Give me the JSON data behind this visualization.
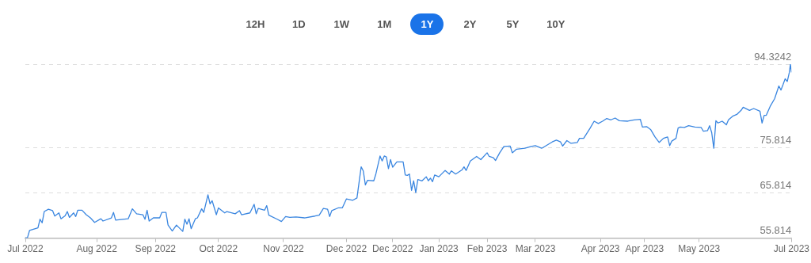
{
  "chart_data": {
    "type": "line",
    "annotations": [
      "12H",
      "1D",
      "1W",
      "1M",
      "1Y",
      "2Y",
      "5Y",
      "10Y"
    ],
    "x": [
      "2022-07-01",
      "2022-07-02",
      "2022-07-03",
      "2022-07-07",
      "2022-07-08",
      "2022-07-09",
      "2022-07-10",
      "2022-07-12",
      "2022-07-14",
      "2022-07-15",
      "2022-07-17",
      "2022-07-18",
      "2022-07-20",
      "2022-07-21",
      "2022-07-22",
      "2022-07-24",
      "2022-07-25",
      "2022-07-26",
      "2022-07-28",
      "2022-07-30",
      "2022-08-01",
      "2022-08-03",
      "2022-08-06",
      "2022-08-07",
      "2022-08-11",
      "2022-08-12",
      "2022-08-13",
      "2022-08-19",
      "2022-08-21",
      "2022-08-23",
      "2022-08-26",
      "2022-08-27",
      "2022-08-28",
      "2022-08-29",
      "2022-08-31",
      "2022-09-03",
      "2022-09-04",
      "2022-09-06",
      "2022-09-07",
      "2022-09-09",
      "2022-09-11",
      "2022-09-14",
      "2022-09-15",
      "2022-09-16",
      "2022-09-17",
      "2022-09-18",
      "2022-09-20",
      "2022-09-21",
      "2022-09-23",
      "2022-09-24",
      "2022-09-26",
      "2022-09-27",
      "2022-09-28",
      "2022-09-30",
      "2022-10-01",
      "2022-10-04",
      "2022-10-05",
      "2022-10-09",
      "2022-10-11",
      "2022-10-12",
      "2022-10-16",
      "2022-10-18",
      "2022-10-19",
      "2022-10-20",
      "2022-10-23",
      "2022-10-24",
      "2022-10-25",
      "2022-10-29",
      "2022-10-31",
      "2022-11-02",
      "2022-11-04",
      "2022-11-07",
      "2022-11-11",
      "2022-11-16",
      "2022-11-18",
      "2022-11-20",
      "2022-11-22",
      "2022-11-23",
      "2022-11-24",
      "2022-11-27",
      "2022-11-29",
      "2022-12-01",
      "2022-12-04",
      "2022-12-06",
      "2022-12-08",
      "2022-12-09",
      "2022-12-10",
      "2022-12-11",
      "2022-12-14",
      "2022-12-15",
      "2022-12-17",
      "2022-12-18",
      "2022-12-19",
      "2022-12-20",
      "2022-12-21",
      "2022-12-22",
      "2022-12-23",
      "2022-12-25",
      "2022-12-28",
      "2022-12-29",
      "2022-12-30",
      "2022-12-31",
      "2023-01-01",
      "2023-01-02",
      "2023-01-03",
      "2023-01-04",
      "2023-01-06",
      "2023-01-08",
      "2023-01-09",
      "2023-01-10",
      "2023-01-11",
      "2023-01-12",
      "2023-01-14",
      "2023-01-17",
      "2023-01-19",
      "2023-01-20",
      "2023-01-22",
      "2023-01-25",
      "2023-01-26",
      "2023-01-27",
      "2023-01-29",
      "2023-02-01",
      "2023-02-03",
      "2023-02-06",
      "2023-02-07",
      "2023-02-09",
      "2023-02-10",
      "2023-02-12",
      "2023-02-14",
      "2023-02-17",
      "2023-02-18",
      "2023-02-20",
      "2023-02-24",
      "2023-02-27",
      "2023-03-01",
      "2023-03-04",
      "2023-03-09",
      "2023-03-11",
      "2023-03-13",
      "2023-03-14",
      "2023-03-16",
      "2023-03-18",
      "2023-03-21",
      "2023-03-22",
      "2023-03-24",
      "2023-03-27",
      "2023-03-29",
      "2023-03-31",
      "2023-04-02",
      "2023-04-04",
      "2023-04-06",
      "2023-04-08",
      "2023-04-10",
      "2023-04-14",
      "2023-04-17",
      "2023-04-20",
      "2023-04-21",
      "2023-04-23",
      "2023-04-25",
      "2023-04-27",
      "2023-04-29",
      "2023-05-01",
      "2023-05-03",
      "2023-05-04",
      "2023-05-05",
      "2023-05-07",
      "2023-05-08",
      "2023-05-09",
      "2023-05-11",
      "2023-05-13",
      "2023-05-16",
      "2023-05-19",
      "2023-05-20",
      "2023-05-22",
      "2023-05-23",
      "2023-05-24",
      "2023-05-25",
      "2023-05-26",
      "2023-05-27",
      "2023-05-29",
      "2023-05-31",
      "2023-06-01",
      "2023-06-03",
      "2023-06-05",
      "2023-06-07",
      "2023-06-08",
      "2023-06-11",
      "2023-06-13",
      "2023-06-16",
      "2023-06-17",
      "2023-06-18",
      "2023-06-19",
      "2023-06-21",
      "2023-06-23",
      "2023-06-25",
      "2023-06-26",
      "2023-06-27",
      "2023-06-28",
      "2023-06-29",
      "2023-06-30",
      "2023-06-30T12:00",
      "2023-07-01"
    ],
    "series": [
      {
        "color": "#3a86e0",
        "values": [
          55.9,
          55.9,
          57.5,
          58.1,
          60.0,
          59.2,
          61.7,
          62.2,
          61.9,
          60.7,
          61.4,
          60.1,
          60.8,
          61.7,
          60.4,
          61.4,
          60.6,
          62.0,
          62.0,
          61.0,
          60.3,
          59.3,
          60.1,
          59.6,
          60.3,
          61.5,
          59.8,
          60.1,
          62.3,
          61.2,
          61.0,
          60.0,
          62.0,
          59.6,
          60.3,
          60.3,
          61.5,
          61.5,
          58.7,
          57.4,
          58.7,
          57.3,
          60.0,
          58.9,
          60.1,
          57.9,
          60.1,
          60.3,
          62.3,
          61.5,
          65.4,
          63.4,
          64.1,
          61.0,
          62.5,
          61.4,
          61.7,
          61.2,
          61.9,
          61.0,
          61.4,
          63.3,
          61.2,
          62.4,
          62.0,
          63.0,
          60.9,
          60.0,
          59.5,
          60.6,
          60.4,
          60.5,
          60.3,
          60.7,
          60.9,
          62.4,
          62.2,
          60.6,
          61.9,
          62.5,
          62.5,
          64.5,
          64.2,
          64.7,
          71.6,
          70.7,
          67.6,
          68.6,
          68.5,
          70.0,
          74.0,
          72.9,
          74.0,
          73.8,
          71.2,
          73.2,
          71.5,
          72.7,
          72.7,
          69.8,
          69.7,
          70.0,
          66.4,
          68.5,
          65.9,
          68.8,
          68.5,
          69.4,
          68.5,
          69.1,
          68.3,
          69.8,
          69.4,
          70.8,
          70.0,
          70.7,
          70.0,
          70.9,
          71.6,
          70.8,
          72.9,
          73.9,
          73.2,
          74.7,
          73.9,
          73.6,
          73.0,
          74.7,
          76.1,
          76.2,
          74.7,
          75.5,
          75.7,
          76.1,
          76.3,
          75.7,
          77.1,
          77.5,
          77.1,
          76.2,
          77.4,
          76.8,
          77.0,
          77.9,
          77.9,
          80.1,
          81.7,
          81.2,
          81.7,
          82.3,
          82.0,
          82.4,
          81.8,
          81.7,
          82.0,
          82.1,
          80.4,
          80.5,
          79.8,
          78.2,
          77.0,
          77.9,
          78.2,
          76.3,
          77.3,
          77.9,
          80.2,
          80.4,
          80.3,
          80.7,
          80.4,
          80.3,
          79.5,
          79.6,
          80.7,
          79.2,
          75.7,
          81.8,
          81.3,
          81.7,
          80.9,
          82.0,
          82.8,
          83.2,
          84.1,
          84.8,
          84.1,
          84.5,
          83.9,
          81.3,
          83.0,
          83.0,
          85.1,
          86.7,
          89.5,
          88.6,
          89.8,
          91.1,
          90.5,
          92.5,
          94.3,
          92.5
        ]
      }
    ],
    "xlim": [
      "2022-07-01",
      "2023-07-01"
    ],
    "xticks": [
      {
        "value": "2022-07-01",
        "label": "Jul 2022"
      },
      {
        "value": "2022-08-04",
        "label": "Aug 2022"
      },
      {
        "value": "2022-09-01",
        "label": "Sep 2022"
      },
      {
        "value": "2022-10-01",
        "label": "Oct 2022"
      },
      {
        "value": "2022-11-01",
        "label": "Nov 2022"
      },
      {
        "value": "2022-12-01",
        "label": "Dec 2022"
      },
      {
        "value": "2022-12-23",
        "label": "Dec 2022"
      },
      {
        "value": "2023-01-14",
        "label": "Jan 2023"
      },
      {
        "value": "2023-02-06",
        "label": "Feb 2023"
      },
      {
        "value": "2023-03-01",
        "label": "Mar 2023"
      },
      {
        "value": "2023-04-01",
        "label": "Apr 2023"
      },
      {
        "value": "2023-04-22",
        "label": "Apr 2023"
      },
      {
        "value": "2023-05-18",
        "label": "May 2023"
      },
      {
        "value": "2023-07-01",
        "label": "Jul 2023"
      }
    ],
    "ylim": [
      55.814,
      94.3242
    ],
    "yticks": [
      55.814,
      65.814,
      75.814,
      94.3242
    ],
    "grid": "y",
    "legend": false,
    "marker": "none",
    "line_style": "solid"
  }
}
